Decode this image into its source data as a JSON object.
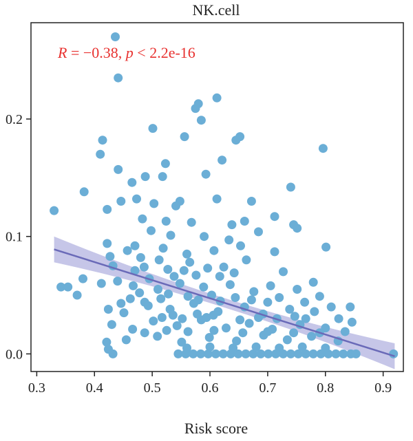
{
  "colors": {
    "points": "#6baed6",
    "line": "#6a6ab8",
    "band": "#b3b3e0",
    "annotation": "#e8312f",
    "axis": "#222222"
  },
  "chart_data": {
    "type": "scatter",
    "title": "NK.cell",
    "xlabel": "Risk score",
    "ylabel": "",
    "xlim": [
      0.29,
      0.935
    ],
    "ylim": [
      -0.015,
      0.282
    ],
    "xticks": [
      0.3,
      0.4,
      0.5,
      0.6,
      0.7,
      0.8,
      0.9
    ],
    "xtick_labels": [
      "0.3",
      "0.4",
      "0.5",
      "0.6",
      "0.7",
      "0.8",
      "0.9"
    ],
    "yticks": [
      0.0,
      0.1,
      0.2
    ],
    "ytick_labels": [
      "0.0",
      "0.1",
      "0.2"
    ],
    "grid": false,
    "annotation": {
      "r_label": "R",
      "r_text": " = −0.38, ",
      "p_label": "p",
      "p_text": " < 2.2e-16"
    },
    "regression": {
      "x": [
        0.33,
        0.92
      ],
      "y": [
        0.089,
        -0.002
      ],
      "ci_half_width_ends": 0.011,
      "ci_half_width_center": 0.004
    },
    "points": [
      [
        0.436,
        0.27
      ],
      [
        0.441,
        0.235
      ],
      [
        0.612,
        0.218
      ],
      [
        0.58,
        0.213
      ],
      [
        0.575,
        0.209
      ],
      [
        0.585,
        0.199
      ],
      [
        0.501,
        0.192
      ],
      [
        0.556,
        0.185
      ],
      [
        0.652,
        0.185
      ],
      [
        0.645,
        0.182
      ],
      [
        0.414,
        0.182
      ],
      [
        0.796,
        0.175
      ],
      [
        0.41,
        0.17
      ],
      [
        0.621,
        0.165
      ],
      [
        0.523,
        0.162
      ],
      [
        0.441,
        0.157
      ],
      [
        0.593,
        0.153
      ],
      [
        0.488,
        0.151
      ],
      [
        0.518,
        0.151
      ],
      [
        0.465,
        0.146
      ],
      [
        0.382,
        0.138
      ],
      [
        0.74,
        0.142
      ],
      [
        0.446,
        0.13
      ],
      [
        0.473,
        0.132
      ],
      [
        0.548,
        0.13
      ],
      [
        0.612,
        0.132
      ],
      [
        0.33,
        0.122
      ],
      [
        0.422,
        0.123
      ],
      [
        0.503,
        0.128
      ],
      [
        0.541,
        0.126
      ],
      [
        0.672,
        0.13
      ],
      [
        0.712,
        0.117
      ],
      [
        0.483,
        0.115
      ],
      [
        0.524,
        0.113
      ],
      [
        0.568,
        0.112
      ],
      [
        0.638,
        0.11
      ],
      [
        0.66,
        0.113
      ],
      [
        0.745,
        0.11
      ],
      [
        0.751,
        0.107
      ],
      [
        0.422,
        0.094
      ],
      [
        0.498,
        0.105
      ],
      [
        0.59,
        0.1
      ],
      [
        0.633,
        0.097
      ],
      [
        0.532,
        0.101
      ],
      [
        0.684,
        0.104
      ],
      [
        0.801,
        0.091
      ],
      [
        0.427,
        0.083
      ],
      [
        0.457,
        0.088
      ],
      [
        0.48,
        0.082
      ],
      [
        0.519,
        0.09
      ],
      [
        0.56,
        0.085
      ],
      [
        0.607,
        0.088
      ],
      [
        0.653,
        0.092
      ],
      [
        0.712,
        0.087
      ],
      [
        0.432,
        0.075
      ],
      [
        0.47,
        0.071
      ],
      [
        0.512,
        0.08
      ],
      [
        0.565,
        0.078
      ],
      [
        0.624,
        0.074
      ],
      [
        0.663,
        0.08
      ],
      [
        0.727,
        0.07
      ],
      [
        0.779,
        0.061
      ],
      [
        0.342,
        0.057
      ],
      [
        0.354,
        0.057
      ],
      [
        0.37,
        0.05
      ],
      [
        0.38,
        0.064
      ],
      [
        0.412,
        0.06
      ],
      [
        0.44,
        0.062
      ],
      [
        0.467,
        0.058
      ],
      [
        0.51,
        0.055
      ],
      [
        0.548,
        0.06
      ],
      [
        0.589,
        0.057
      ],
      [
        0.635,
        0.059
      ],
      [
        0.676,
        0.053
      ],
      [
        0.705,
        0.058
      ],
      [
        0.751,
        0.055
      ],
      [
        0.79,
        0.049
      ],
      [
        0.424,
        0.038
      ],
      [
        0.451,
        0.035
      ],
      [
        0.493,
        0.041
      ],
      [
        0.531,
        0.038
      ],
      [
        0.572,
        0.043
      ],
      [
        0.614,
        0.036
      ],
      [
        0.66,
        0.04
      ],
      [
        0.692,
        0.034
      ],
      [
        0.738,
        0.038
      ],
      [
        0.781,
        0.036
      ],
      [
        0.81,
        0.04
      ],
      [
        0.843,
        0.04
      ],
      [
        0.43,
        0.025
      ],
      [
        0.466,
        0.021
      ],
      [
        0.502,
        0.028
      ],
      [
        0.543,
        0.024
      ],
      [
        0.585,
        0.029
      ],
      [
        0.628,
        0.022
      ],
      [
        0.668,
        0.026
      ],
      [
        0.708,
        0.021
      ],
      [
        0.756,
        0.025
      ],
      [
        0.8,
        0.022
      ],
      [
        0.846,
        0.027
      ],
      [
        0.421,
        0.01
      ],
      [
        0.455,
        0.012
      ],
      [
        0.509,
        0.015
      ],
      [
        0.551,
        0.01
      ],
      [
        0.599,
        0.014
      ],
      [
        0.646,
        0.011
      ],
      [
        0.693,
        0.016
      ],
      [
        0.734,
        0.012
      ],
      [
        0.776,
        0.015
      ],
      [
        0.822,
        0.011
      ],
      [
        0.424,
        0.004
      ],
      [
        0.432,
        0.0
      ],
      [
        0.545,
        0.0
      ],
      [
        0.558,
        0.0
      ],
      [
        0.571,
        0.0
      ],
      [
        0.584,
        0.0
      ],
      [
        0.597,
        0.0
      ],
      [
        0.61,
        0.0
      ],
      [
        0.623,
        0.0
      ],
      [
        0.636,
        0.0
      ],
      [
        0.649,
        0.0
      ],
      [
        0.662,
        0.0
      ],
      [
        0.675,
        0.0
      ],
      [
        0.688,
        0.0
      ],
      [
        0.701,
        0.0
      ],
      [
        0.714,
        0.0
      ],
      [
        0.727,
        0.0
      ],
      [
        0.74,
        0.0
      ],
      [
        0.753,
        0.0
      ],
      [
        0.766,
        0.0
      ],
      [
        0.779,
        0.0
      ],
      [
        0.792,
        0.0
      ],
      [
        0.805,
        0.0
      ],
      [
        0.818,
        0.0
      ],
      [
        0.831,
        0.0
      ],
      [
        0.844,
        0.0
      ],
      [
        0.853,
        0.0
      ],
      [
        0.918,
        0.0
      ],
      [
        0.56,
        0.005
      ],
      [
        0.6,
        0.006
      ],
      [
        0.64,
        0.005
      ],
      [
        0.68,
        0.006
      ],
      [
        0.72,
        0.005
      ],
      [
        0.76,
        0.006
      ],
      [
        0.8,
        0.005
      ],
      [
        0.47,
        0.092
      ],
      [
        0.486,
        0.074
      ],
      [
        0.495,
        0.064
      ],
      [
        0.527,
        0.072
      ],
      [
        0.538,
        0.066
      ],
      [
        0.555,
        0.071
      ],
      [
        0.576,
        0.067
      ],
      [
        0.596,
        0.073
      ],
      [
        0.617,
        0.066
      ],
      [
        0.642,
        0.069
      ],
      [
        0.462,
        0.047
      ],
      [
        0.478,
        0.052
      ],
      [
        0.487,
        0.044
      ],
      [
        0.515,
        0.047
      ],
      [
        0.528,
        0.051
      ],
      [
        0.562,
        0.049
      ],
      [
        0.58,
        0.046
      ],
      [
        0.603,
        0.05
      ],
      [
        0.618,
        0.045
      ],
      [
        0.644,
        0.048
      ],
      [
        0.672,
        0.046
      ],
      [
        0.7,
        0.044
      ],
      [
        0.72,
        0.048
      ],
      [
        0.764,
        0.044
      ],
      [
        0.446,
        0.043
      ],
      [
        0.517,
        0.031
      ],
      [
        0.536,
        0.033
      ],
      [
        0.552,
        0.03
      ],
      [
        0.578,
        0.034
      ],
      [
        0.594,
        0.031
      ],
      [
        0.606,
        0.033
      ],
      [
        0.652,
        0.029
      ],
      [
        0.684,
        0.031
      ],
      [
        0.716,
        0.03
      ],
      [
        0.747,
        0.032
      ],
      [
        0.766,
        0.03
      ],
      [
        0.823,
        0.03
      ],
      [
        0.487,
        0.018
      ],
      [
        0.525,
        0.02
      ],
      [
        0.562,
        0.019
      ],
      [
        0.607,
        0.02
      ],
      [
        0.657,
        0.018
      ],
      [
        0.7,
        0.019
      ],
      [
        0.745,
        0.018
      ],
      [
        0.79,
        0.018
      ],
      [
        0.834,
        0.019
      ]
    ]
  }
}
